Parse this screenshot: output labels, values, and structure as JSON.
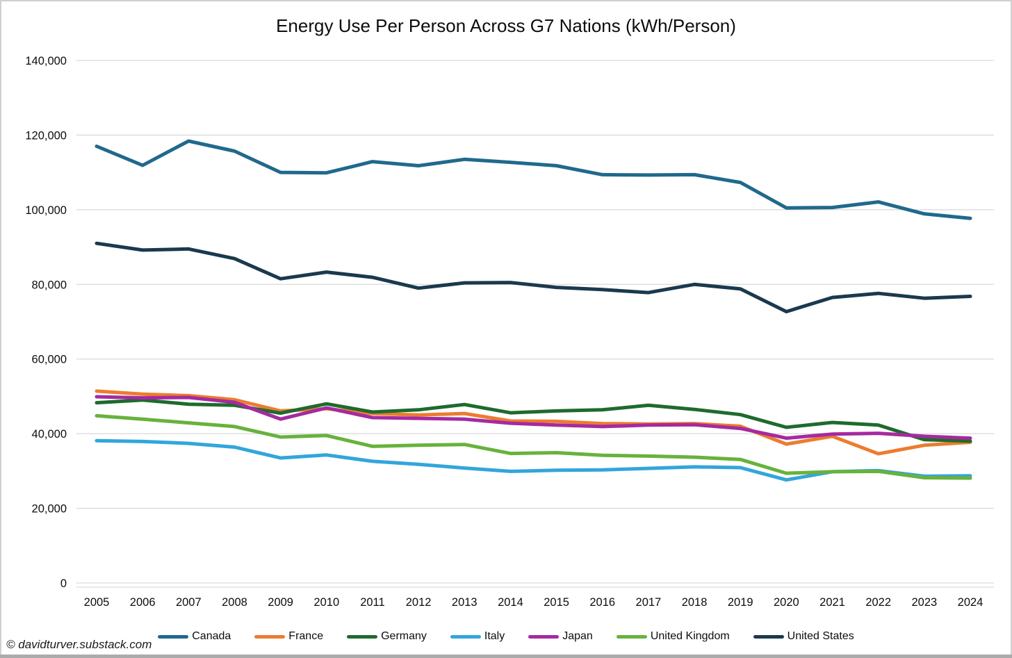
{
  "title": "Energy Use Per Person Across G7 Nations (kWh/Person)",
  "watermark": "© davidturver.substack.com",
  "chart_data": {
    "type": "line",
    "title": "Energy Use Per Person Across G7 Nations (kWh/Person)",
    "xlabel": "",
    "ylabel": "",
    "x": [
      2005,
      2006,
      2007,
      2008,
      2009,
      2010,
      2011,
      2012,
      2013,
      2014,
      2015,
      2016,
      2017,
      2018,
      2019,
      2020,
      2021,
      2022,
      2023,
      2024
    ],
    "xtick_labels": [
      "2005",
      "2006",
      "2007",
      "2008",
      "2009",
      "2010",
      "2011",
      "2012",
      "2013",
      "2014",
      "2015",
      "2016",
      "2017",
      "2018",
      "2019",
      "2020",
      "2021",
      "2022",
      "2023",
      "2024"
    ],
    "ylim": [
      0,
      140000
    ],
    "yticks": [
      0,
      20000,
      40000,
      60000,
      80000,
      100000,
      120000,
      140000
    ],
    "ytick_labels": [
      "0",
      "20,000",
      "40,000",
      "60,000",
      "80,000",
      "100,000",
      "120,000",
      "140,000"
    ],
    "grid": true,
    "legend_position": "bottom",
    "gridline_color": "#d9d9d9",
    "series": [
      {
        "name": "Canada",
        "color": "#20698c",
        "values": [
          117000,
          111900,
          118400,
          115700,
          110000,
          109900,
          112900,
          111800,
          113500,
          112700,
          111800,
          109400,
          109300,
          109400,
          107300,
          100500,
          100600,
          102100,
          98900,
          97700
        ]
      },
      {
        "name": "France",
        "color": "#ec7c30",
        "values": [
          51400,
          50600,
          50200,
          49100,
          46100,
          46700,
          45400,
          45000,
          45400,
          43400,
          43300,
          42700,
          42600,
          42700,
          42000,
          37200,
          39300,
          34600,
          36900,
          37700
        ]
      },
      {
        "name": "Germany",
        "color": "#1e6b2d",
        "values": [
          48300,
          49000,
          47900,
          47600,
          45500,
          48000,
          45800,
          46400,
          47800,
          45600,
          46100,
          46400,
          47600,
          46500,
          45100,
          41700,
          43000,
          42300,
          38400,
          38000
        ]
      },
      {
        "name": "Italy",
        "color": "#33a5dc",
        "values": [
          38100,
          37900,
          37400,
          36400,
          33500,
          34300,
          32600,
          31800,
          30800,
          29900,
          30200,
          30300,
          30700,
          31100,
          30900,
          27600,
          29800,
          30100,
          28600,
          28700
        ]
      },
      {
        "name": "Japan",
        "color": "#a52aa0",
        "values": [
          49900,
          49600,
          49700,
          48400,
          43900,
          46900,
          44300,
          44100,
          43900,
          42800,
          42300,
          41900,
          42300,
          42400,
          41400,
          38800,
          39900,
          40100,
          39300,
          38800
        ]
      },
      {
        "name": "United Kingdom",
        "color": "#68b23c",
        "values": [
          44800,
          43900,
          42900,
          41900,
          39100,
          39500,
          36600,
          36900,
          37100,
          34700,
          34900,
          34200,
          34000,
          33700,
          33100,
          29400,
          29800,
          29900,
          28200,
          28100
        ]
      },
      {
        "name": "United States",
        "color": "#1b394e",
        "values": [
          91000,
          89200,
          89500,
          86900,
          81500,
          83300,
          81900,
          79000,
          80400,
          80500,
          79200,
          78600,
          77800,
          80000,
          78800,
          72700,
          76500,
          77600,
          76300,
          76800
        ]
      }
    ]
  }
}
